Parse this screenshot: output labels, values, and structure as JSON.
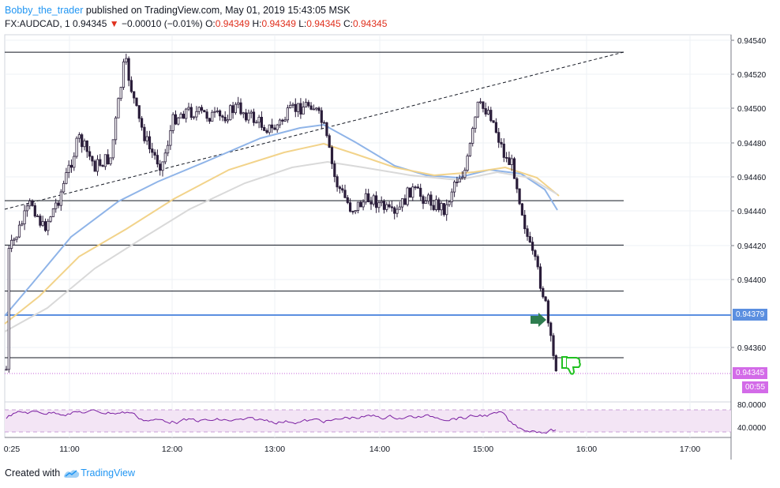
{
  "header": {
    "author": "Bobby_the_trader",
    "published": " published on TradingView.com, May 01, 2019 15:43:05 MSK",
    "symbol": "FX:AUDCAD, 1",
    "last": "0.94345",
    "change": "−0.00010 (−0.01%)",
    "o_label": "O:",
    "o": "0.94349",
    "h_label": "H:",
    "h": "0.94349",
    "l_label": "L:",
    "l": "0.94345",
    "c_label": "C:",
    "c": "0.94345"
  },
  "price_axis": {
    "ticks": [
      "0.94540",
      "0.94520",
      "0.94500",
      "0.94480",
      "0.94460",
      "0.94440",
      "0.94420",
      "0.94400",
      "0.94360"
    ],
    "blue_line_label": "0.94379",
    "current_price_label": "0.94345",
    "countdown": "00:55"
  },
  "rsi_axis": {
    "ticks": [
      "80.0000",
      "40.0000"
    ]
  },
  "time_axis": {
    "ticks": [
      "0:25",
      "11:00",
      "12:00",
      "13:00",
      "14:00",
      "15:00",
      "16:00",
      "17:00"
    ]
  },
  "footer": {
    "created_with": "Created with",
    "brand": "TradingView"
  },
  "colors": {
    "candle_down": "#2a1d3a",
    "candle_up": "#ffffff",
    "ma_fast": "#8fb4e8",
    "ma_mid": "#f2d38a",
    "ma_slow": "#d9d9d9",
    "blue_line": "#5b8fe0",
    "rsi_line": "#7b1fa2",
    "rsi_band": "#f3e5f5",
    "current_tag": "#d36be8",
    "arrow": "#2e7d4f",
    "thumb": "#21c021"
  },
  "chart_data": {
    "type": "candlestick",
    "symbol": "FX:AUDCAD",
    "interval": "1",
    "ylim": [
      0.94325,
      0.9455
    ],
    "xticks": [
      "0:25",
      "11:00",
      "12:00",
      "13:00",
      "14:00",
      "15:00",
      "16:00",
      "17:00"
    ],
    "horizontal_levels": [
      0.94533,
      0.94446,
      0.9442,
      0.94393,
      0.94379,
      0.94354
    ],
    "trendline": {
      "from": [
        " 10:25",
        0.94442
      ],
      "to": [
        "16:20",
        0.94533
      ]
    },
    "series": [
      {
        "name": "close",
        "x": [
          "10:25",
          "10:40",
          "10:55",
          "11:00",
          "11:10",
          "11:20",
          "11:30",
          "11:35",
          "11:45",
          "11:55",
          "12:05",
          "12:15",
          "12:25",
          "12:35",
          "12:45",
          "12:55",
          "13:05",
          "13:15",
          "13:25",
          "13:35",
          "13:45",
          "13:55",
          "14:05",
          "14:15",
          "14:25",
          "14:35",
          "14:45",
          "14:55",
          "15:00",
          "15:05",
          "15:10",
          "15:15",
          "15:20",
          "15:25",
          "15:30",
          "15:35",
          "15:40",
          "15:43"
        ],
        "values": [
          0.9442,
          0.9444,
          0.94445,
          0.9446,
          0.9448,
          0.9447,
          0.9449,
          0.9453,
          0.9449,
          0.94475,
          0.9447,
          0.945,
          0.94505,
          0.94495,
          0.945,
          0.945,
          0.94495,
          0.945,
          0.94505,
          0.9448,
          0.9446,
          0.9445,
          0.94445,
          0.9444,
          0.9445,
          0.9445,
          0.94445,
          0.9446,
          0.9448,
          0.945,
          0.9449,
          0.9448,
          0.9447,
          0.9445,
          0.9442,
          0.944,
          0.9437,
          0.94345
        ]
      }
    ],
    "rsi": {
      "levels": [
        70,
        30
      ],
      "ticks": [
        "80.0000",
        "40.0000"
      ],
      "last": 25
    }
  }
}
